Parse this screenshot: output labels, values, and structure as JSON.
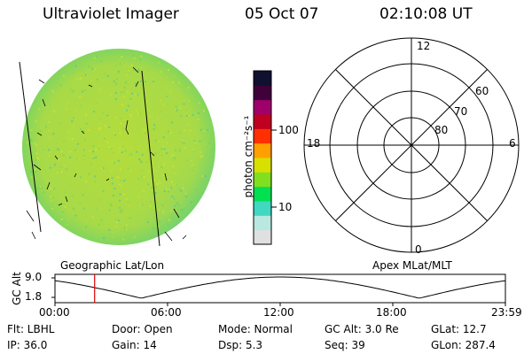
{
  "header": {
    "instrument": "Ultraviolet Imager",
    "date": "05 Oct 07",
    "time": "02:10:08 UT"
  },
  "colorbar": {
    "unit_label": "photon cm⁻²s⁻¹",
    "ticks": [
      "100",
      "10"
    ],
    "colors": [
      "#e0e0e0",
      "#b8e8e0",
      "#40d8c0",
      "#00e050",
      "#80e020",
      "#d8e000",
      "#ffa000",
      "#ff3000",
      "#c00020",
      "#a0006a",
      "#40003a",
      "#101030"
    ]
  },
  "polar_plot": {
    "mlt_labels": {
      "top": "12",
      "left": "18",
      "right": "6",
      "bottom": "0"
    },
    "lat_labels": [
      "60",
      "70",
      "80"
    ]
  },
  "orbit_strip": {
    "left_title": "Geographic Lat/Lon",
    "right_title": "Apex MLat/MLT",
    "ylabel": "GC Alt",
    "y_ticks": [
      "9.0",
      "1.8"
    ],
    "x_ticks": [
      "00:00",
      "06:00",
      "12:00",
      "18:00",
      "23:59"
    ],
    "current_time_fraction": 0.088
  },
  "status": {
    "row1": [
      "Flt: LBHL",
      "Door: Open",
      "Mode: Normal",
      "GC Alt: 3.0 Re",
      "GLat:  12.7"
    ],
    "row2": [
      "IP: 36.0",
      "Gain: 14",
      "Dsp:    5.3",
      "Seq: 39",
      "GLon: 287.4"
    ]
  }
}
